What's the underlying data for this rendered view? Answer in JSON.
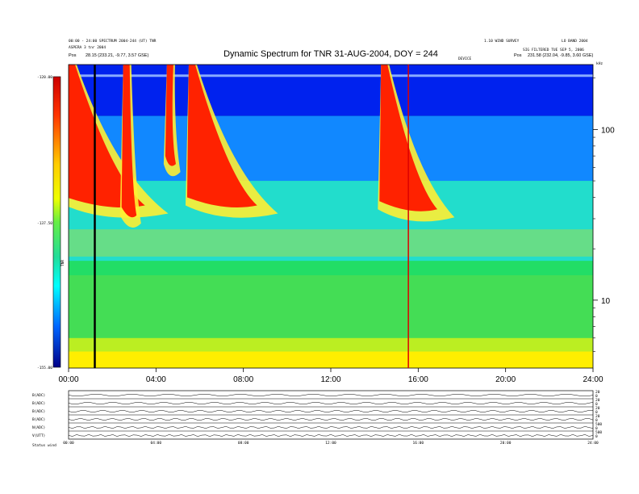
{
  "header": {
    "title": "Dynamic Spectrum for TNR 31-AUG-2004, DOY = 244",
    "info_left_line1": "00:00 - 24:00 SPECTRUM 2004-244 (UT) TNR",
    "info_left_line2": "ASPERA 3  tnr 2004",
    "info_left_line3_label": "Pos",
    "info_left_line3_value": "28.15 (233.21, -9.77, 3.57 GSE)",
    "info_center_small": "DEVICE",
    "info_right_top_a": "1.10 WIND SURVEY",
    "info_right_top_b": "LO BAND 2004",
    "info_right_line2": "SIG FILTERED TUE SEP 5, 2006",
    "info_right_line3_label": "Pos",
    "info_right_line3_value": "231.58 (232.04, -9.85, 3.60 GSE)",
    "corner_mark": "kHz"
  },
  "colorbar": {
    "label": "TNR",
    "ticks": [
      "-120.00",
      "-137.50",
      "-155.00"
    ]
  },
  "chart_data": {
    "type": "heatmap",
    "title": "Dynamic Spectrum for TNR 31-AUG-2004, DOY = 244",
    "xlabel": "",
    "ylabel": "kHz",
    "x_ticks": [
      "00:00",
      "04:00",
      "08:00",
      "12:00",
      "16:00",
      "20:00",
      "24:00"
    ],
    "x_range_hours": [
      0,
      24
    ],
    "y_scale": "log",
    "y_range_khz": [
      4,
      240
    ],
    "y_ticks": [
      100,
      10
    ],
    "color_scale": {
      "min": -155.0,
      "mid": -137.5,
      "max": -120.0,
      "colormap": "jet"
    },
    "events": [
      {
        "name": "burst",
        "start_h": 0.0,
        "peak_h": 1.9,
        "peak_khz": 40
      },
      {
        "name": "burst",
        "start_h": 2.5,
        "peak_h": 2.8,
        "peak_khz": 35
      },
      {
        "name": "burst",
        "start_h": 4.5,
        "peak_h": 4.6,
        "peak_khz": 70
      },
      {
        "name": "burst",
        "start_h": 5.5,
        "peak_h": 7.2,
        "peak_khz": 40
      },
      {
        "name": "burst",
        "start_h": 14.3,
        "peak_h": 15.7,
        "peak_khz": 38
      }
    ],
    "marker_hours": [
      1.2,
      15.55
    ]
  },
  "bottom_panels": {
    "labels": [
      "B(ADC)",
      "B(ADC)",
      "B(ADC)",
      "B(ADC)",
      "N(ADC)",
      "V(UTT)"
    ],
    "right_ticks": [
      "20",
      "0",
      "20",
      "0",
      "20",
      "0",
      "20",
      "0",
      "500",
      "0",
      "500",
      "0"
    ],
    "x_ticks": [
      "00:00",
      "04:00",
      "08:00",
      "12:00",
      "16:00",
      "20:00",
      "24:00"
    ],
    "footer": "Status   wind"
  }
}
